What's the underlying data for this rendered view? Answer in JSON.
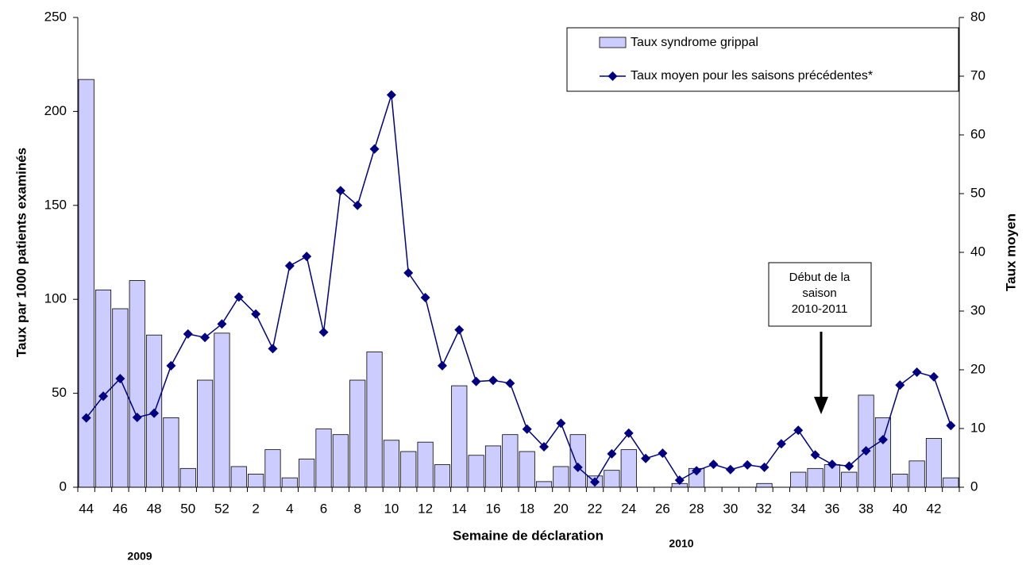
{
  "chart_data": {
    "type": "bar-line",
    "x_label": "Semaine de déclaration",
    "y_label": "Taux par 1000 patients examinés",
    "y2_label": "Taux moyen",
    "year_labels": [
      "2009",
      "2010"
    ],
    "annotation": [
      "Début de la",
      "saison",
      "2010-2011"
    ],
    "categories": [
      "44",
      null,
      "46",
      null,
      "48",
      null,
      "50",
      null,
      "52",
      null,
      "2",
      null,
      "4",
      null,
      "6",
      null,
      "8",
      null,
      "10",
      null,
      "12",
      null,
      "14",
      null,
      "16",
      null,
      "18",
      null,
      "20",
      null,
      "22",
      null,
      "24",
      null,
      "26",
      null,
      "28",
      null,
      "30",
      null,
      "32",
      null,
      "34",
      null,
      "36",
      null,
      "38",
      null,
      "40",
      null,
      "42",
      null
    ],
    "series": [
      {
        "name": "Taux syndrome grippal",
        "color": "#ccccff",
        "axis": "y",
        "values": [
          217,
          105,
          95,
          110,
          81,
          37,
          10,
          57,
          82,
          11,
          7,
          20,
          5,
          15,
          31,
          28,
          57,
          72,
          25,
          19,
          24,
          12,
          54,
          17,
          22,
          28,
          19,
          3,
          11,
          28,
          6,
          9,
          20,
          0,
          0,
          2,
          10,
          0,
          0,
          0,
          2,
          0,
          8,
          10,
          12,
          8,
          49,
          37,
          7,
          14,
          26,
          5
        ]
      },
      {
        "name": "Taux moyen pour les saisons précédentes*",
        "color": "#000080",
        "axis": "y2",
        "values": [
          11.8,
          15.5,
          18.5,
          11.9,
          12.6,
          20.7,
          26.1,
          25.5,
          27.8,
          32.4,
          29.5,
          23.6,
          37.7,
          39.3,
          26.4,
          50.5,
          48,
          57.6,
          66.8,
          36.5,
          32.3,
          20.7,
          26.8,
          18,
          18.2,
          17.7,
          9.9,
          6.9,
          10.9,
          3.4,
          0.9,
          5.7,
          9.2,
          4.9,
          5.8,
          1.2,
          2.8,
          3.9,
          3,
          3.8,
          3.4,
          7.4,
          9.7,
          5.5,
          3.9,
          3.6,
          6.2,
          8.1,
          17.4,
          19.6,
          18.8,
          10.5
        ]
      }
    ],
    "ylim": [
      0,
      250
    ],
    "yticks": [
      0,
      50,
      100,
      150,
      200,
      250
    ],
    "y2lim": [
      0,
      80
    ],
    "y2ticks": [
      0,
      10,
      20,
      30,
      40,
      50,
      60,
      70,
      80
    ],
    "grid": false
  }
}
